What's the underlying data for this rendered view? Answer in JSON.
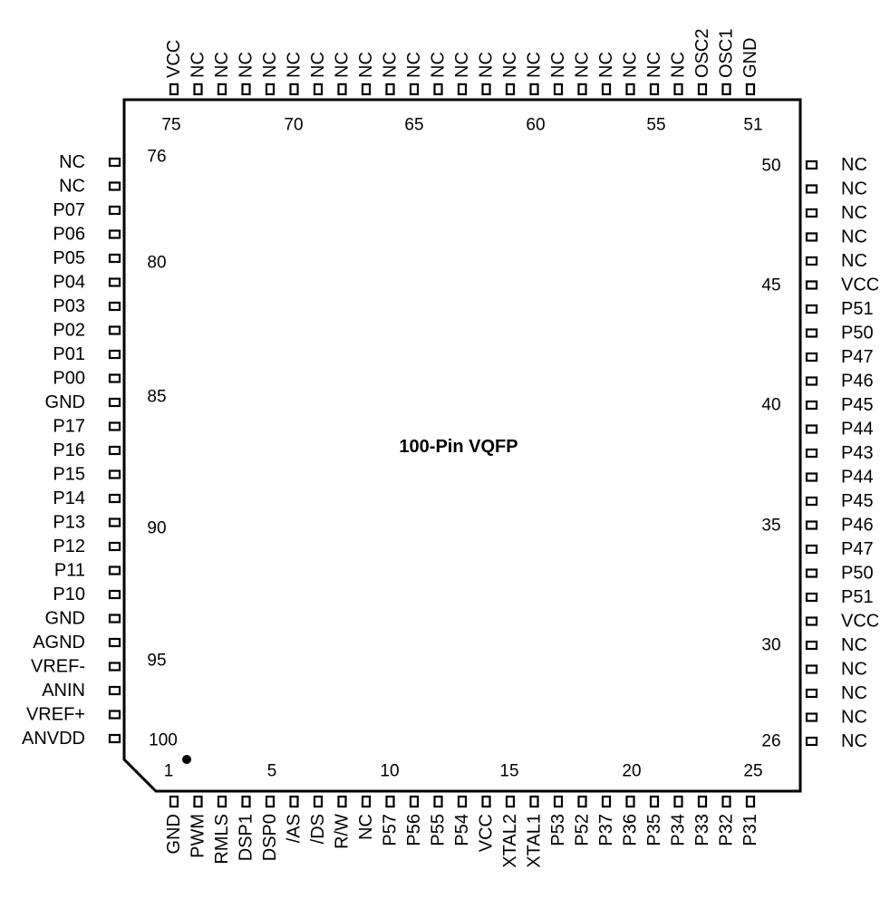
{
  "title": "100-Pin VQFP",
  "colors": {
    "ink": "#000000",
    "background": "#ffffff"
  },
  "pins": {
    "bottom": [
      "GND",
      "PWM",
      "RMLS",
      "DSP1",
      "DSP0",
      "/AS",
      "/DS",
      "R/W",
      "NC",
      "P57",
      "P56",
      "P55",
      "P54",
      "VCC",
      "XTAL2",
      "XTAL1",
      "P53",
      "P52",
      "P37",
      "P36",
      "P35",
      "P34",
      "P33",
      "P32",
      "P31"
    ],
    "right": [
      "NC",
      "NC",
      "NC",
      "NC",
      "NC",
      "VCC",
      "P51",
      "P50",
      "P47",
      "P46",
      "P45",
      "P44",
      "P43",
      "P44",
      "P45",
      "P46",
      "P47",
      "P50",
      "P51",
      "VCC",
      "NC",
      "NC",
      "NC",
      "NC",
      "NC"
    ],
    "top": [
      "GND",
      "OSC1",
      "OSC2",
      "NC",
      "NC",
      "NC",
      "NC",
      "NC",
      "NC",
      "NC",
      "NC",
      "NC",
      "NC",
      "NC",
      "NC",
      "NC",
      "NC",
      "NC",
      "NC",
      "NC",
      "NC",
      "NC",
      "NC",
      "NC",
      "VCC"
    ],
    "left": [
      "NC",
      "NC",
      "P07",
      "P06",
      "P05",
      "P04",
      "P03",
      "P02",
      "P01",
      "P00",
      "GND",
      "P17",
      "P16",
      "P15",
      "P14",
      "P13",
      "P12",
      "P11",
      "P10",
      "GND",
      "AGND",
      "VREF-",
      "ANIN",
      "VREF+",
      "ANVDD"
    ]
  },
  "pin_numbers": {
    "bottom": [
      "1",
      "5",
      "10",
      "15",
      "20",
      "25"
    ],
    "right": [
      "26",
      "30",
      "35",
      "40",
      "45",
      "50"
    ],
    "top": [
      "51",
      "55",
      "60",
      "65",
      "70",
      "75"
    ],
    "left": [
      "76",
      "80",
      "85",
      "90",
      "95",
      "100"
    ]
  }
}
